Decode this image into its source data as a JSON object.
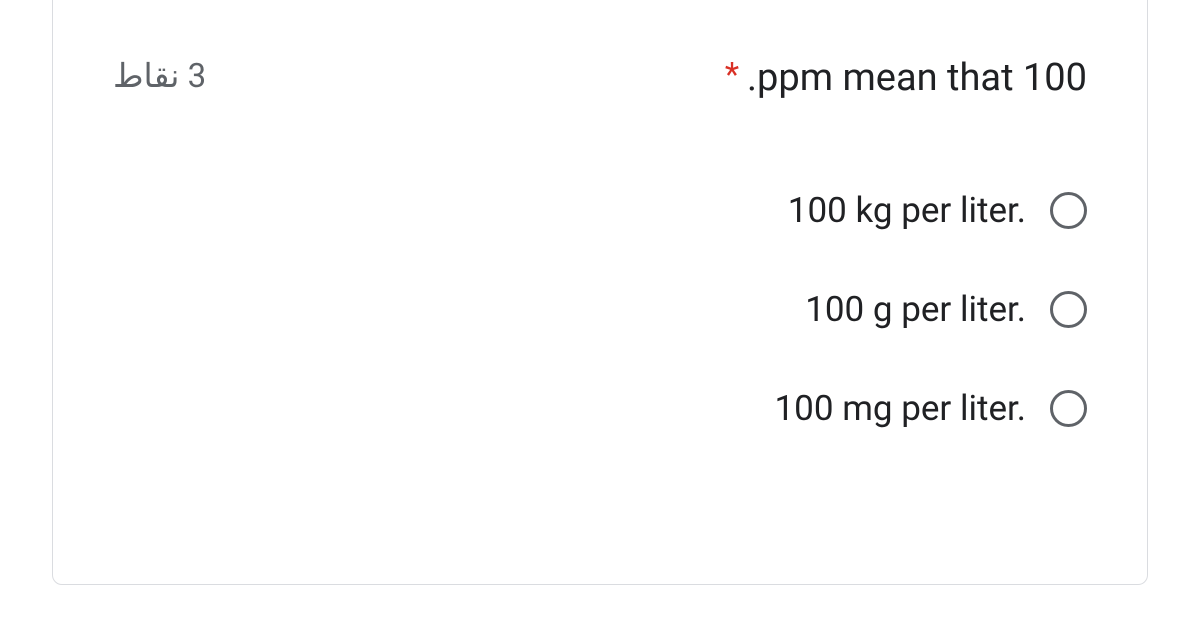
{
  "question": {
    "points": "3 نقاط",
    "required_marker": "*",
    "title": ".ppm mean that 100",
    "options": [
      {
        "label": "100 kg per liter."
      },
      {
        "label": "100 g per liter."
      },
      {
        "label": "100 mg per liter."
      }
    ],
    "colors": {
      "card_border": "#dadce0",
      "points_text": "#5f6368",
      "required": "#d93025",
      "title_text": "#202124",
      "option_text": "#202124",
      "radio_border": "#5f6368",
      "background": "#ffffff"
    }
  }
}
